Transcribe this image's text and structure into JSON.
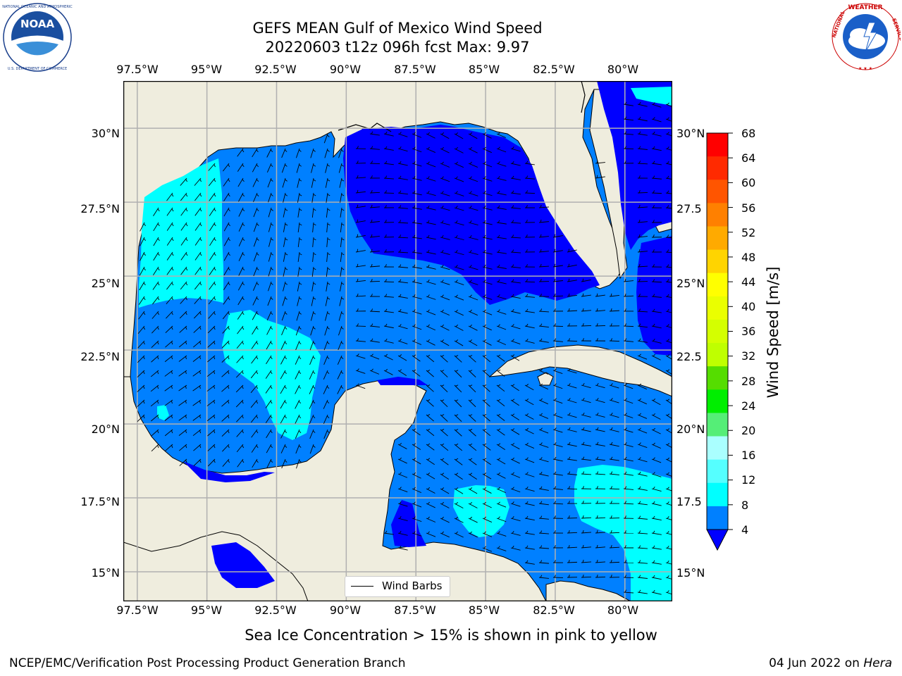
{
  "title": {
    "line1": "GEFS MEAN Gulf of Mexico Wind Speed",
    "line2": "20220603 t12z 096h fcst   Max: 9.97"
  },
  "logos": {
    "noaa": {
      "text": "NOAA",
      "ring_text": "NATIONAL OCEANIC AND ATMOSPHERIC ADMINISTRATION · U.S. DEPARTMENT OF COMMERCE"
    },
    "nws": {
      "ring_text": "NATIONAL WEATHER SERVICE"
    }
  },
  "map": {
    "lon_labels": [
      "97.5°W",
      "95°W",
      "92.5°W",
      "90°W",
      "87.5°W",
      "85°W",
      "82.5°W",
      "80°W"
    ],
    "lat_labels_left": [
      "30°N",
      "27.5°N",
      "25°N",
      "22.5°N",
      "20°N",
      "17.5°N",
      "15°N"
    ],
    "lat_labels_right": [
      "30°N",
      "27.5",
      "25°N",
      "22.5",
      "20°N",
      "17.5",
      "15°N"
    ],
    "lon_range": [
      -98,
      -78.3
    ],
    "lat_range": [
      14,
      31.6
    ],
    "legend": {
      "label": "Wind Barbs"
    },
    "colors": {
      "land": "#efedde",
      "band_4_8": "#0080ff",
      "band_lt_4": "#0000ff",
      "band_8_12": "#00ffff",
      "grid": "#b0b0b0"
    }
  },
  "colorbar": {
    "label": "Wind Speed [m/s]",
    "ticks": [
      "68",
      "64",
      "60",
      "56",
      "52",
      "48",
      "44",
      "40",
      "36",
      "32",
      "28",
      "24",
      "20",
      "16",
      "12",
      "8",
      "4"
    ],
    "colors_top_to_bottom": [
      "#ff0000",
      "#ff2a00",
      "#ff5500",
      "#ff8000",
      "#ffaa00",
      "#ffd400",
      "#ffff00",
      "#eaff00",
      "#d4ff00",
      "#bfff00",
      "#55dd00",
      "#00ee00",
      "#55ee77",
      "#aaffff",
      "#55ffff",
      "#00ffff",
      "#0080ff"
    ],
    "extend_color": "#0000ff"
  },
  "note": "Sea Ice Concentration > 15% is shown in pink to yellow",
  "footer": {
    "left": "NCEP/EMC/Verification Post Processing Product Generation Branch",
    "date": "04 Jun 2022 on ",
    "machine": "Hera"
  }
}
